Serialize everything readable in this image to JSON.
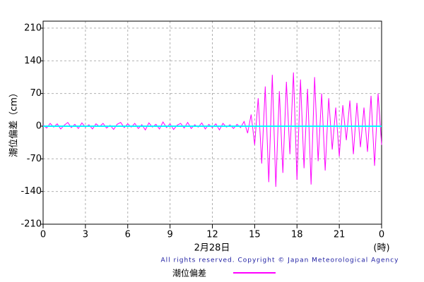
{
  "chart_data": {
    "type": "line",
    "y_label": "潮位偏差（cm）",
    "x_label": "2月28日",
    "x_unit": "(時)",
    "footer": "All rights reserved. Copyright © Japan Meteorological Agency",
    "x": [
      0,
      0.25,
      0.5,
      0.75,
      1,
      1.25,
      1.5,
      1.75,
      2,
      2.25,
      2.5,
      2.75,
      3,
      3.25,
      3.5,
      3.75,
      4,
      4.25,
      4.5,
      4.75,
      5,
      5.25,
      5.5,
      5.75,
      6,
      6.25,
      6.5,
      6.75,
      7,
      7.25,
      7.5,
      7.75,
      8,
      8.25,
      8.5,
      8.75,
      9,
      9.25,
      9.5,
      9.75,
      10,
      10.25,
      10.5,
      10.75,
      11,
      11.25,
      11.5,
      11.75,
      12,
      12.25,
      12.5,
      12.75,
      13,
      13.25,
      13.5,
      13.75,
      14,
      14.25,
      14.5,
      14.75,
      15,
      15.25,
      15.5,
      15.75,
      16,
      16.25,
      16.5,
      16.75,
      17,
      17.25,
      17.5,
      17.75,
      18,
      18.25,
      18.5,
      18.75,
      19,
      19.25,
      19.5,
      19.75,
      20,
      20.25,
      20.5,
      20.75,
      21,
      21.25,
      21.5,
      21.75,
      22,
      22.25,
      22.5,
      22.75,
      23,
      23.25,
      23.5,
      23.75,
      24
    ],
    "series": [
      {
        "name": "潮位偏差",
        "color": "#ff00ff",
        "values": [
          3,
          -4,
          6,
          -2,
          5,
          -6,
          2,
          8,
          -3,
          4,
          -5,
          7,
          -2,
          3,
          -6,
          5,
          -1,
          6,
          -4,
          2,
          -7,
          4,
          8,
          -3,
          5,
          -2,
          6,
          -5,
          3,
          -8,
          7,
          -2,
          4,
          -6,
          9,
          -3,
          5,
          -7,
          2,
          6,
          -4,
          8,
          -5,
          3,
          -2,
          7,
          -6,
          4,
          -3,
          5,
          -8,
          6,
          -2,
          3,
          -5,
          4,
          -3,
          10,
          -15,
          25,
          -40,
          60,
          -80,
          85,
          -120,
          110,
          -130,
          75,
          -100,
          95,
          -60,
          115,
          -115,
          100,
          -90,
          80,
          -125,
          105,
          -75,
          70,
          -95,
          60,
          -50,
          40,
          -65,
          45,
          -30,
          55,
          -60,
          50,
          -45,
          40,
          -55,
          65,
          -85,
          70,
          -40
        ]
      }
    ],
    "zero_line_color": "#00ffff",
    "xlim": [
      0,
      24
    ],
    "xticks": [
      0,
      3,
      6,
      9,
      12,
      15,
      18,
      21,
      {
        "value": 24,
        "label": "0"
      }
    ],
    "ylim": [
      -210,
      225
    ],
    "yticks": [
      -210,
      -140,
      -70,
      0,
      70,
      140,
      210
    ],
    "grid": true
  }
}
